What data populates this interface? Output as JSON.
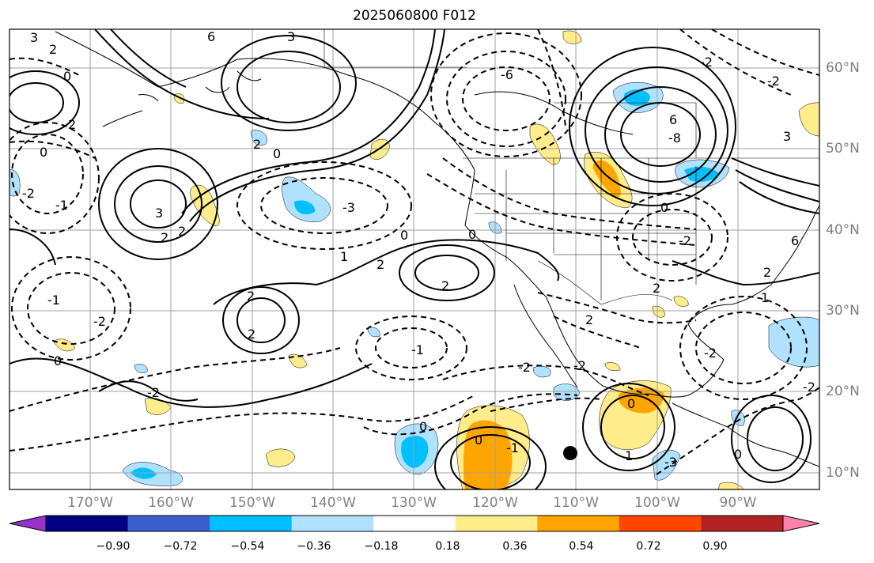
{
  "title": "2025060800 F012",
  "latitude_labels": [
    "60°N",
    "50°N",
    "40°N",
    "30°N",
    "20°N",
    "10°N"
  ],
  "longitude_labels": [
    "170°W",
    "160°W",
    "150°W",
    "140°W",
    "130°W",
    "120°W",
    "110°W",
    "100°W",
    "90°W"
  ],
  "colorbar": {
    "tick_labels": [
      "−0.90",
      "−0.72",
      "−0.54",
      "−0.36",
      "−0.18",
      "0.18",
      "0.36",
      "0.54",
      "0.72",
      "0.90"
    ],
    "colors": [
      "#9932CC",
      "#000080",
      "#3A5FCD",
      "#00BFFF",
      "#B0E2FF",
      "#FFFFFF",
      "#FFEC8B",
      "#FFA500",
      "#FF4500",
      "#B22222",
      "#FF82AB"
    ]
  },
  "contour_labels": [
    "3",
    "2",
    "0",
    "6",
    "3",
    "2",
    "2",
    "0",
    "-1",
    "3",
    "2",
    "0",
    "-3",
    "-2",
    "0",
    "2",
    "1",
    "2",
    "2",
    "-1",
    "-2",
    "0",
    "-1",
    "2",
    "2",
    "-2",
    "-2",
    "2",
    "-2",
    "0",
    "-1",
    "-6",
    "6",
    "-8",
    "0",
    "3",
    "2",
    "-2",
    "-3",
    "-2",
    "0",
    "0",
    "1",
    "-2",
    "2",
    "1",
    "-2",
    "0",
    "6",
    "-2",
    "0"
  ]
}
